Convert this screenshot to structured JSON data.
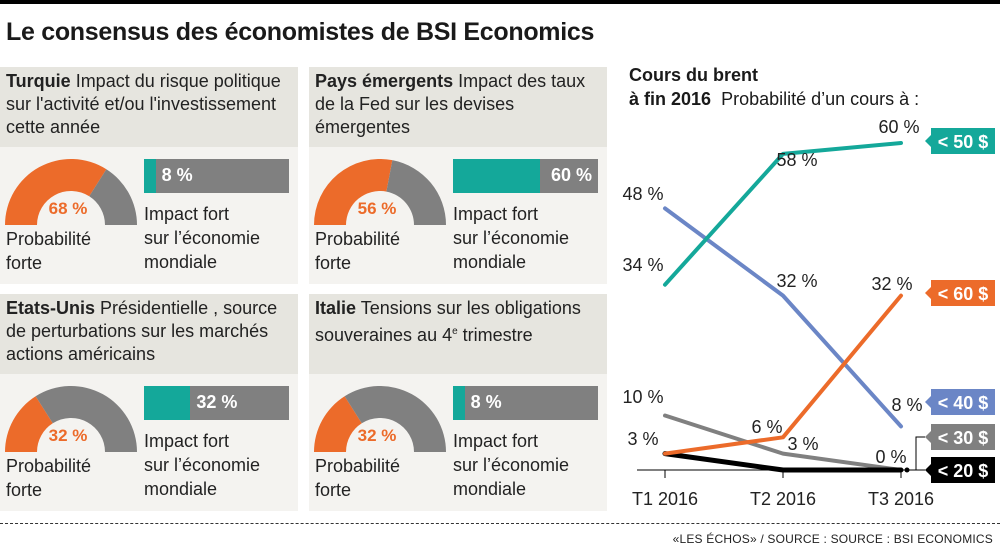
{
  "title": "Le consensus des économistes de BSI Economics",
  "panels": [
    {
      "country": "Turquie",
      "description": "Impact du risque politique sur l'activité et/ou l'investissement cette année",
      "probability_pct": 68,
      "probability_text": "68 %",
      "probability_label_1": "Probabilité",
      "probability_label_2": "forte",
      "impact_pct": 8,
      "impact_text": "8 %",
      "impact_label_1": "Impact fort",
      "impact_label_2": "sur l’économie",
      "impact_label_3": "mondiale"
    },
    {
      "country": "Pays émergents",
      "description": "Impact des taux de la Fed sur les devises émergentes",
      "probability_pct": 56,
      "probability_text": "56 %",
      "probability_label_1": "Probabilité",
      "probability_label_2": "forte",
      "impact_pct": 60,
      "impact_text": "60 %",
      "impact_label_1": "Impact fort",
      "impact_label_2": "sur l’économie",
      "impact_label_3": "mondiale"
    },
    {
      "country": "Etats-Unis",
      "description": "Présidentielle , source de perturbations sur les marchés actions américains",
      "probability_pct": 32,
      "probability_text": "32 %",
      "probability_label_1": "Probabilité",
      "probability_label_2": "forte",
      "impact_pct": 32,
      "impact_text": "32 %",
      "impact_label_1": "Impact fort",
      "impact_label_2": "sur l’économie",
      "impact_label_3": "mondiale"
    },
    {
      "country": "Italie",
      "description_pre": "Tensions sur les obligations souveraines au 4",
      "description_sup": "e",
      "description_post": " trimestre",
      "probability_pct": 32,
      "probability_text": "32 %",
      "probability_label_1": "Probabilité",
      "probability_label_2": "forte",
      "impact_pct": 8,
      "impact_text": "8 %",
      "impact_label_1": "Impact fort",
      "impact_label_2": "sur l’économie",
      "impact_label_3": "mondiale"
    }
  ],
  "colors": {
    "orange": "#ec6b2a",
    "gray": "#808080",
    "teal": "#14a89a",
    "blue": "#6b86c6",
    "black": "#000000"
  },
  "chart_data": {
    "type": "line",
    "title_bold_1": "Cours du brent",
    "title_bold_2": "à fin 2016",
    "subtitle": "Probabilité d’un cours à :",
    "categories": [
      "T1 2016",
      "T2 2016",
      "T3 2016"
    ],
    "ylim": [
      0,
      60
    ],
    "unit": "%",
    "grid": false,
    "series": [
      {
        "name": "< 50 $",
        "color": "#14a89a",
        "values": [
          34,
          58,
          60
        ],
        "labels": [
          "34 %",
          "58 %",
          "60 %"
        ]
      },
      {
        "name": "< 60 $",
        "color": "#ec6b2a",
        "values": [
          3,
          6,
          32
        ],
        "labels": [
          "",
          "6 %",
          "32 %"
        ]
      },
      {
        "name": "< 40 $",
        "color": "#6b86c6",
        "values": [
          48,
          32,
          8
        ],
        "labels": [
          "48 %",
          "32 %",
          "8 %"
        ]
      },
      {
        "name": "< 30 $",
        "color": "#808080",
        "values": [
          10,
          3,
          0
        ],
        "labels": [
          "10 %",
          "3 %",
          ""
        ]
      },
      {
        "name": "< 20 $",
        "color": "#000000",
        "values": [
          3,
          0,
          0
        ],
        "labels": [
          "3 %",
          "",
          "0 %"
        ]
      }
    ]
  },
  "footer": {
    "source": "«LES ÉCHOS» / SOURCE : SOURCE : BSI ECONOMICS"
  }
}
